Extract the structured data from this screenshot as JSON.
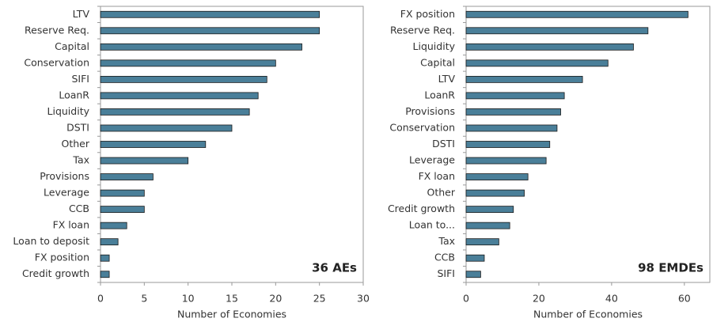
{
  "chart_data": [
    {
      "type": "barh",
      "categories": [
        "LTV",
        "Reserve Req.",
        "Capital",
        "Conservation",
        "SIFI",
        "LoanR",
        "Liquidity",
        "DSTI",
        "Other",
        "Tax",
        "Provisions",
        "Leverage",
        "CCB",
        "FX loan",
        "Loan to deposit",
        "FX position",
        "Credit growth"
      ],
      "values": [
        25,
        25,
        23,
        20,
        19,
        18,
        17,
        15,
        12,
        10,
        6,
        5,
        5,
        3,
        2,
        1,
        1
      ],
      "color": "#4a7f99",
      "xlim": [
        0,
        30
      ],
      "xticks": [
        0,
        5,
        10,
        15,
        20,
        25,
        30
      ],
      "xlabel": "Number of Economies",
      "annotation": "36 AEs"
    },
    {
      "type": "barh",
      "categories": [
        "FX position",
        "Reserve Req.",
        "Liquidity",
        "Capital",
        "LTV",
        "LoanR",
        "Provisions",
        "Conservation",
        "DSTI",
        "Leverage",
        "FX loan",
        "Other",
        "Credit growth",
        "Loan to...",
        "Tax",
        "CCB",
        "SIFI"
      ],
      "values": [
        61,
        50,
        46,
        39,
        32,
        27,
        26,
        25,
        23,
        22,
        17,
        16,
        13,
        12,
        9,
        5,
        4
      ],
      "color": "#4a7f99",
      "xlim": [
        0,
        67
      ],
      "xticks": [
        0,
        20,
        40,
        60
      ],
      "xlabel": "Number of Economies",
      "annotation": "98 EMDEs"
    }
  ]
}
